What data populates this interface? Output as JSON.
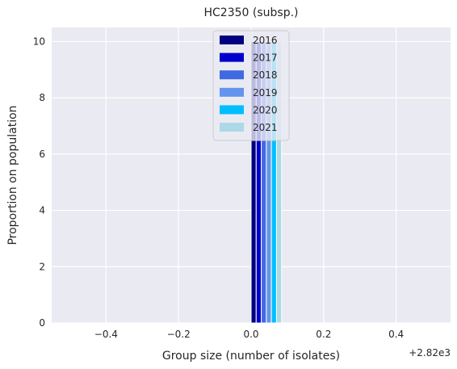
{
  "chart_data": {
    "type": "bar",
    "title": "HC2350 (subsp.)",
    "xlabel": "Group size (number of isolates)",
    "ylabel": "Proportion on population",
    "x_offset_label": "+2.82e3",
    "xlim": [
      -0.55,
      0.55
    ],
    "ylim": [
      0,
      10.5
    ],
    "x_ticks": [
      -0.4,
      -0.2,
      0.0,
      0.2,
      0.4
    ],
    "x_tick_labels": [
      "−0.4",
      "−0.2",
      "0.0",
      "0.2",
      "0.4"
    ],
    "y_ticks": [
      0,
      2,
      4,
      6,
      8,
      10
    ],
    "y_tick_labels": [
      "0",
      "2",
      "4",
      "6",
      "8",
      "10"
    ],
    "grid": true,
    "legend_position": "top-center",
    "series": [
      {
        "name": "2016",
        "x": 0.0,
        "value": 10,
        "color": "#000080"
      },
      {
        "name": "2017",
        "x": 0.0,
        "value": 10,
        "color": "#0000CD"
      },
      {
        "name": "2018",
        "x": 0.0,
        "value": 10,
        "color": "#4169E1"
      },
      {
        "name": "2019",
        "x": 0.0,
        "value": 10,
        "color": "#6495ED"
      },
      {
        "name": "2020",
        "x": 0.0,
        "value": 10,
        "color": "#00BFFF"
      },
      {
        "name": "2021",
        "x": 0.0,
        "value": 10,
        "color": "#ADD8E6"
      }
    ]
  }
}
